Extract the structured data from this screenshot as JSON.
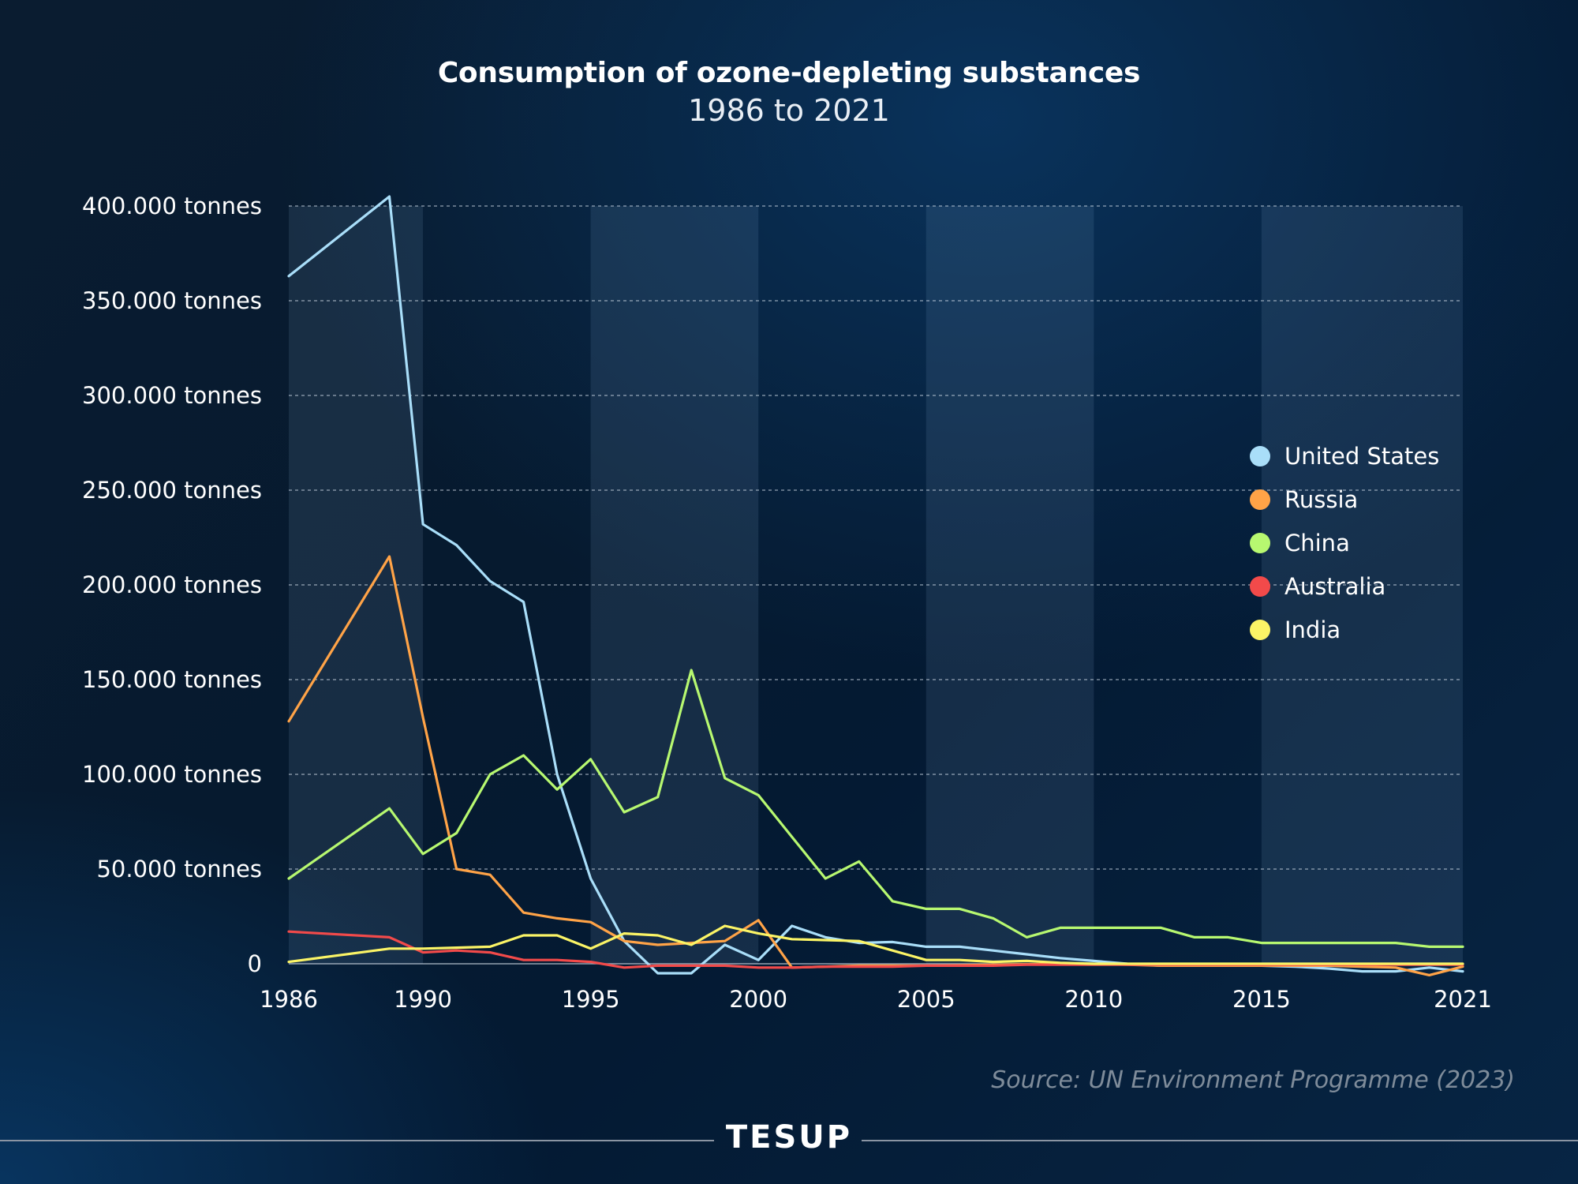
{
  "chart_data": {
    "type": "line",
    "title": "Consumption of ozone-depleting substances",
    "subtitle": "1986 to 2021",
    "xlabel": "",
    "ylabel": "",
    "xlim": [
      1986,
      2021
    ],
    "ylim": [
      0,
      400000
    ],
    "x_ticks": [
      "1986",
      "1990",
      "1995",
      "2000",
      "2005",
      "2010",
      "2015",
      "2021"
    ],
    "y_ticks": [
      "0",
      "50.000 tonnes",
      "100.000 tonnes",
      "150.000 tonnes",
      "200.000 tonnes",
      "250.000 tonnes",
      "300.000 tonnes",
      "350.000 tonnes",
      "400.000 tonnes"
    ],
    "legend_position": "right",
    "x": [
      1986,
      1989,
      1990,
      1991,
      1992,
      1993,
      1994,
      1995,
      1996,
      1997,
      1998,
      1999,
      2000,
      2001,
      2002,
      2003,
      2004,
      2005,
      2006,
      2007,
      2008,
      2009,
      2010,
      2011,
      2012,
      2013,
      2014,
      2015,
      2016,
      2017,
      2018,
      2019,
      2020,
      2021
    ],
    "series": [
      {
        "name": "United States",
        "color": "#a9def9",
        "values": [
          363000,
          405000,
          232000,
          221000,
          202000,
          191000,
          100000,
          45000,
          12000,
          -5000,
          -5000,
          10000,
          2000,
          20000,
          14000,
          11000,
          11500,
          9000,
          9000,
          7000,
          5000,
          3000,
          1500,
          0,
          -1000,
          -1000,
          -1000,
          -1000,
          -1500,
          -2500,
          -4000,
          -4000,
          -2000,
          -4000
        ]
      },
      {
        "name": "Russia",
        "color": "#ffa347",
        "values": [
          128000,
          215000,
          130000,
          50000,
          47000,
          27000,
          24000,
          22000,
          12000,
          10000,
          11000,
          12000,
          23000,
          -2000,
          -1500,
          -1000,
          -1000,
          -1000,
          -800,
          -500,
          -300,
          -200,
          -100,
          -500,
          -1000,
          -1000,
          -1000,
          -1000,
          -1000,
          -1000,
          -1500,
          -2000,
          -6000,
          -1500
        ]
      },
      {
        "name": "China",
        "color": "#b7f870",
        "values": [
          45000,
          82000,
          58000,
          69000,
          100000,
          110000,
          92000,
          108000,
          80000,
          88000,
          155000,
          98000,
          89000,
          67000,
          45000,
          54000,
          33000,
          29000,
          29000,
          24000,
          14000,
          19000,
          19000,
          19000,
          19000,
          14000,
          14000,
          11000,
          11000,
          11000,
          11000,
          11000,
          9000,
          9000
        ]
      },
      {
        "name": "Australia",
        "color": "#f24a4a",
        "values": [
          17000,
          14000,
          6000,
          7000,
          6000,
          2000,
          2000,
          1000,
          -2000,
          -1000,
          -1000,
          -1000,
          -2000,
          -2000,
          -1500,
          -1500,
          -1500,
          -1000,
          -1000,
          -1000,
          -500,
          -500,
          -500,
          -500,
          -500,
          -500,
          -500,
          -500,
          -500,
          -500,
          -500,
          -500,
          -500,
          -500
        ]
      },
      {
        "name": "India",
        "color": "#fbf466",
        "values": [
          1000,
          8000,
          8000,
          8500,
          9000,
          15000,
          15000,
          8000,
          16000,
          15000,
          10000,
          20000,
          16000,
          13000,
          12500,
          12000,
          7000,
          2000,
          2000,
          1000,
          1500,
          500,
          0,
          0,
          0,
          0,
          0,
          0,
          0,
          0,
          0,
          0,
          0,
          0
        ]
      }
    ]
  },
  "source": "Source: UN Environment Programme (2023)",
  "brand": "TESUP"
}
